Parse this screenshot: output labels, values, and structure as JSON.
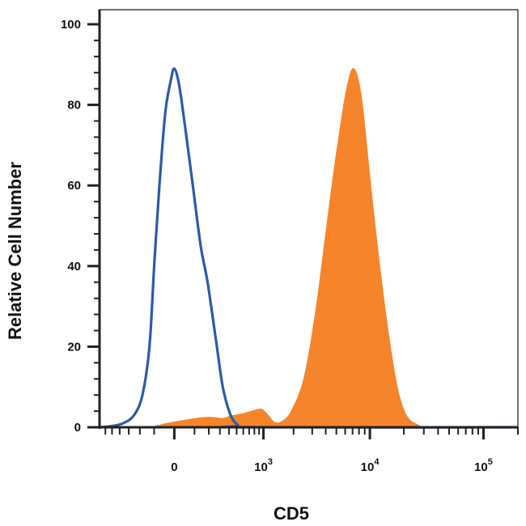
{
  "chart_data": {
    "type": "area",
    "title": "",
    "xlabel": "CD5",
    "ylabel": "Relative Cell Number",
    "x_scale": "biexponential",
    "xlim": [
      -700,
      200000
    ],
    "ylim": [
      0,
      100
    ],
    "grid": false,
    "legend": "none",
    "y_ticks": [
      {
        "value": 0,
        "label": "0"
      },
      {
        "value": 20,
        "label": "20"
      },
      {
        "value": 40,
        "label": "40"
      },
      {
        "value": 60,
        "label": "60"
      },
      {
        "value": 80,
        "label": "80"
      },
      {
        "value": 100,
        "label": "100"
      }
    ],
    "x_ticks": [
      {
        "value": 0,
        "base": "0",
        "exp": ""
      },
      {
        "value": 1000,
        "base": "10",
        "exp": "3"
      },
      {
        "value": 10000,
        "base": "10",
        "exp": "4"
      },
      {
        "value": 100000,
        "base": "10",
        "exp": "5"
      }
    ],
    "series": [
      {
        "style": "outline",
        "color": "#2b5ba8",
        "points": [
          [
            -700,
            0
          ],
          [
            -500,
            0.3
          ],
          [
            -360,
            1
          ],
          [
            -250,
            3
          ],
          [
            -180,
            8
          ],
          [
            -130,
            20
          ],
          [
            -100,
            40
          ],
          [
            -70,
            60
          ],
          [
            -40,
            78
          ],
          [
            -15,
            86
          ],
          [
            0,
            89
          ],
          [
            20,
            85
          ],
          [
            50,
            74
          ],
          [
            90,
            60
          ],
          [
            140,
            45
          ],
          [
            190,
            36
          ],
          [
            260,
            22
          ],
          [
            330,
            10
          ],
          [
            420,
            3
          ],
          [
            520,
            0.5
          ],
          [
            620,
            0
          ],
          [
            200000,
            0
          ]
        ]
      },
      {
        "style": "filled",
        "color": "#f5842b",
        "points": [
          [
            -700,
            0
          ],
          [
            -150,
            0
          ],
          [
            -30,
            1
          ],
          [
            80,
            2
          ],
          [
            200,
            2.5
          ],
          [
            330,
            2.2
          ],
          [
            420,
            2.8
          ],
          [
            600,
            3.4
          ],
          [
            800,
            4.2
          ],
          [
            950,
            4.5
          ],
          [
            1100,
            3.2
          ],
          [
            1300,
            1.2
          ],
          [
            1550,
            1.5
          ],
          [
            1900,
            4
          ],
          [
            2500,
            12
          ],
          [
            3200,
            28
          ],
          [
            4000,
            48
          ],
          [
            5000,
            68
          ],
          [
            6200,
            84
          ],
          [
            7200,
            89
          ],
          [
            8400,
            82
          ],
          [
            10000,
            62
          ],
          [
            12000,
            42
          ],
          [
            14500,
            24
          ],
          [
            17500,
            10
          ],
          [
            21000,
            3
          ],
          [
            27000,
            0.5
          ],
          [
            35000,
            0
          ],
          [
            200000,
            0
          ]
        ]
      }
    ]
  }
}
